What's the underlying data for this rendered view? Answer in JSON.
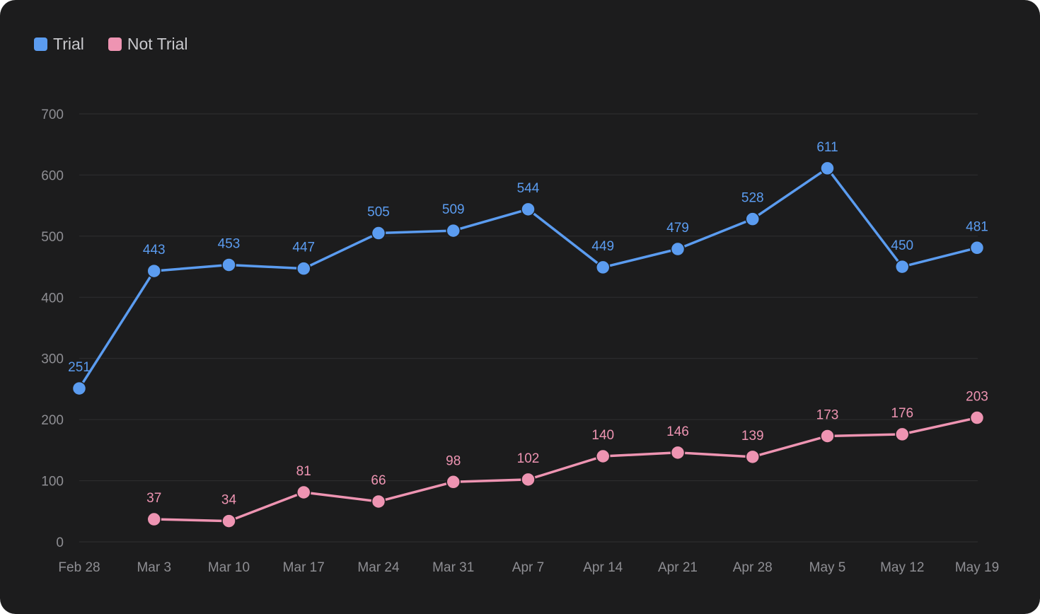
{
  "legend": {
    "items": [
      {
        "label": "Trial",
        "color": "#5b9cf0"
      },
      {
        "label": "Not Trial",
        "color": "#ee94b2"
      }
    ]
  },
  "colors": {
    "background": "#1c1c1d",
    "grid": "#2f2f31",
    "tick_text": "#8e8e93",
    "legend_text": "#c8c8cc"
  },
  "chart_data": {
    "type": "line",
    "categories": [
      "Feb 28",
      "Mar 3",
      "Mar 10",
      "Mar 17",
      "Mar 24",
      "Mar 31",
      "Apr 7",
      "Apr 14",
      "Apr 21",
      "Apr 28",
      "May 5",
      "May 12",
      "May 19"
    ],
    "ylim": [
      0,
      700
    ],
    "yticks": [
      0,
      100,
      200,
      300,
      400,
      500,
      600,
      700
    ],
    "grid": true,
    "legend_position": "top-left",
    "data_labels": true,
    "series": [
      {
        "name": "Trial",
        "color": "#5b9cf0",
        "values": [
          251,
          443,
          453,
          447,
          505,
          509,
          544,
          449,
          479,
          528,
          611,
          450,
          481
        ]
      },
      {
        "name": "Not Trial",
        "color": "#ee94b2",
        "values": [
          null,
          37,
          34,
          81,
          66,
          98,
          102,
          140,
          146,
          139,
          173,
          176,
          203
        ]
      }
    ]
  }
}
